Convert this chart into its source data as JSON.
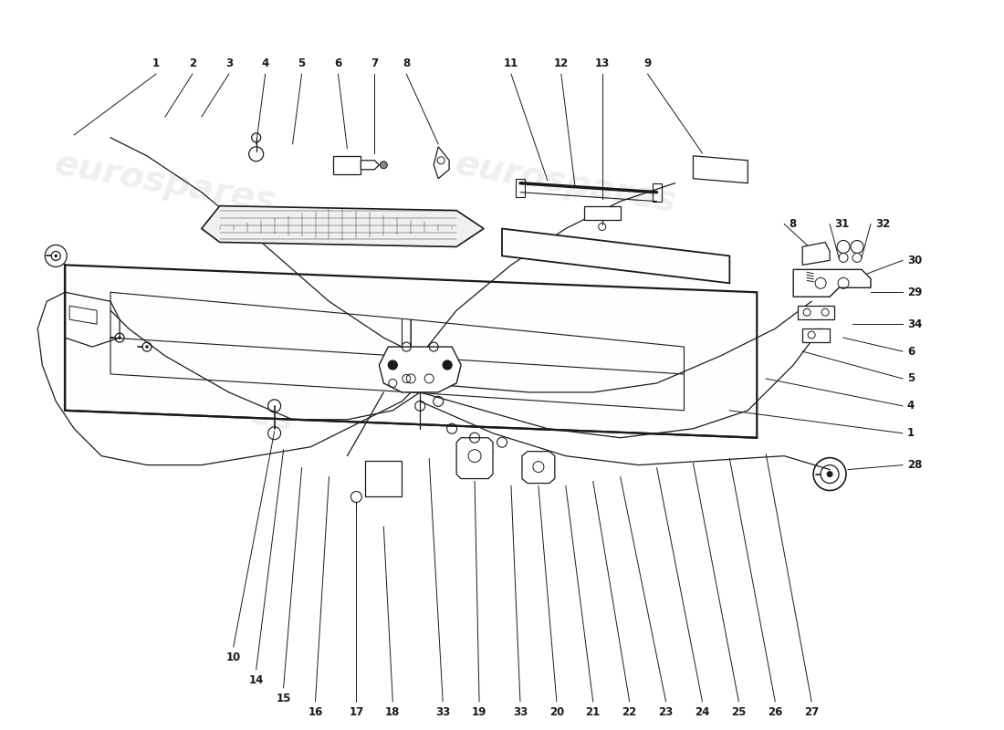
{
  "bg_color": "#ffffff",
  "line_color": "#1a1a1a",
  "fig_width": 11.0,
  "fig_height": 8.0,
  "dpi": 100,
  "watermark_text": "eurospares",
  "watermark_color": "#c8c8c8",
  "label_fontsize": 8.5
}
